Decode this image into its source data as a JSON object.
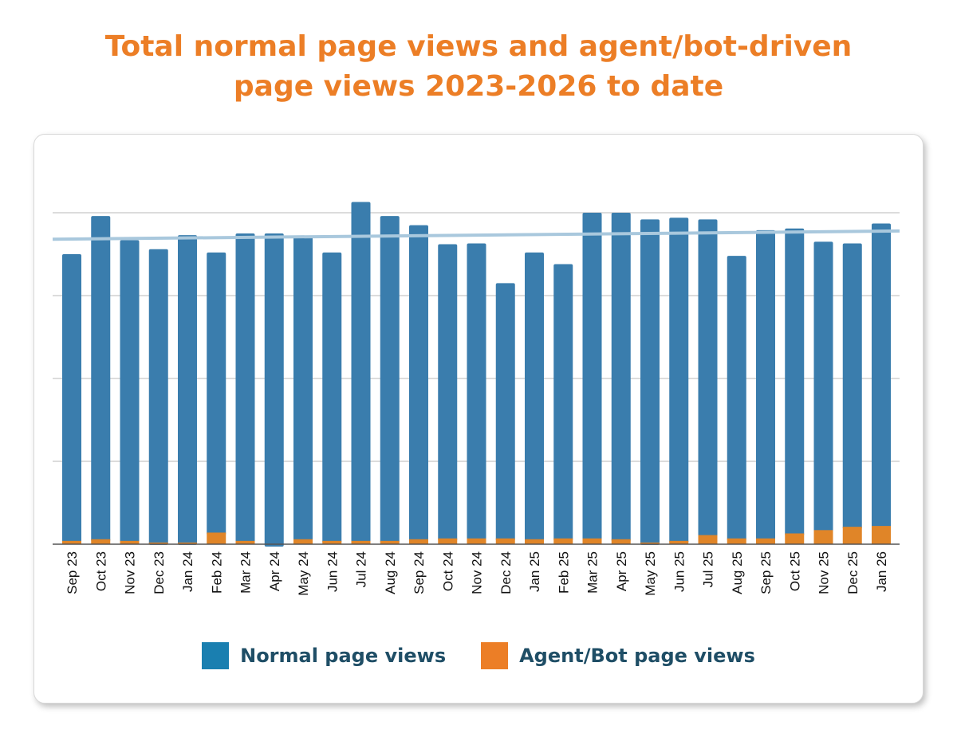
{
  "title": {
    "line1": "Total normal page views and agent/bot-driven",
    "line2": "page views 2023-2026 to date"
  },
  "colors": {
    "normal": "#3A7DAD",
    "bot": "#E08528",
    "trend": "#A9C8DD",
    "legend_normal": "#1A7FB0",
    "legend_bot": "#EC7E26",
    "title": "#EC7E26"
  },
  "chart_data": {
    "type": "bar",
    "stacked": true,
    "title": "Total normal page views and agent/bot-driven page views 2023-2026 to date",
    "xlabel": "",
    "ylabel": "",
    "y_tick_labels_shown": false,
    "ylim": [
      0,
      4.3
    ],
    "gridlines": [
      1,
      2,
      3,
      4
    ],
    "grid": true,
    "legend_placement": "bottom",
    "categories": [
      "Sep 23",
      "Oct 23",
      "Nov 23",
      "Dec 23",
      "Jan 24",
      "Feb 24",
      "Mar 24",
      "Apr 24",
      "May 24",
      "Jun 24",
      "Jul 24",
      "Aug 24",
      "Sep 24",
      "Oct 24",
      "Nov 24",
      "Dec 24",
      "Jan 25",
      "Feb 25",
      "Mar 25",
      "Apr 25",
      "May 25",
      "Jun 25",
      "Jul 25",
      "Aug 25",
      "Sep 25",
      "Oct 25",
      "Nov 25",
      "Dec 25",
      "Jan 26"
    ],
    "series": [
      {
        "name": "Normal page views",
        "values": [
          3.46,
          3.9,
          3.63,
          3.54,
          3.71,
          3.38,
          3.71,
          3.75,
          3.65,
          3.48,
          4.09,
          3.92,
          3.79,
          3.55,
          3.56,
          3.08,
          3.46,
          3.31,
          3.93,
          3.94,
          3.9,
          3.9,
          3.81,
          3.41,
          3.72,
          3.68,
          3.48,
          3.42,
          3.65
        ]
      },
      {
        "name": "Agent/Bot page views",
        "values": [
          0.04,
          0.06,
          0.04,
          0.02,
          0.02,
          0.14,
          0.04,
          0.0,
          0.06,
          0.04,
          0.04,
          0.04,
          0.06,
          0.07,
          0.07,
          0.07,
          0.06,
          0.07,
          0.07,
          0.06,
          0.02,
          0.04,
          0.11,
          0.07,
          0.07,
          0.13,
          0.17,
          0.21,
          0.22
        ]
      }
    ],
    "trendline": {
      "type": "linear",
      "start": 3.68,
      "end": 3.78
    }
  },
  "legend": {
    "normal": "Normal page views",
    "bot": "Agent/Bot page views"
  }
}
